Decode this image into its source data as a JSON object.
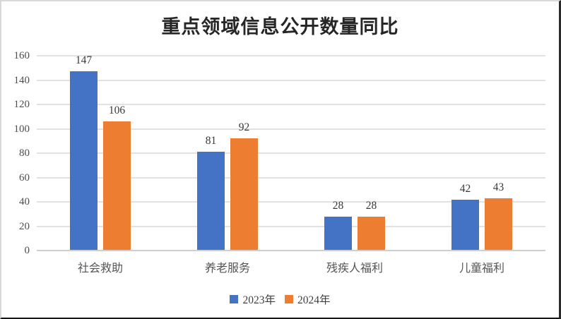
{
  "title": "重点领域信息公开数量同比",
  "chart_data": {
    "type": "bar",
    "title": "重点领域信息公开数量同比",
    "categories": [
      "社会救助",
      "养老服务",
      "残疾人福利",
      "儿童福利"
    ],
    "series": [
      {
        "name": "2023年",
        "color": "#4472C4",
        "values": [
          147,
          81,
          28,
          42
        ]
      },
      {
        "name": "2024年",
        "color": "#ED7D31",
        "values": [
          106,
          92,
          28,
          43
        ]
      }
    ],
    "xlabel": "",
    "ylabel": "",
    "ylim": [
      0,
      160
    ],
    "ytick_step": 20,
    "grid": true,
    "value_labels": true,
    "legend_position": "bottom"
  },
  "colors": {
    "grid": "#E2E2E2",
    "axis_line": "#CFCFCF",
    "title_text": "#262626",
    "value_label_text": "#383838",
    "tick_label_text": "#4D4D4D",
    "category_label_text": "#555555"
  }
}
